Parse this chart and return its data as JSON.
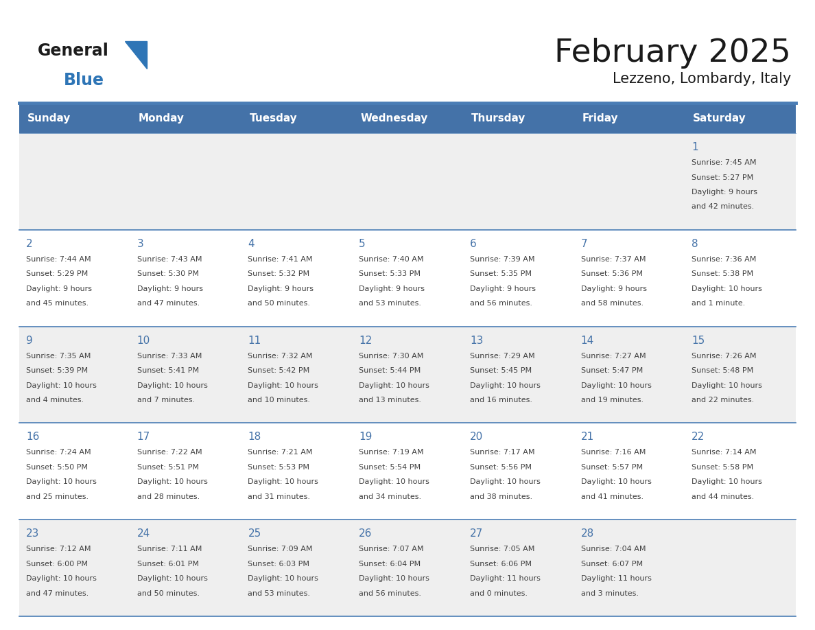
{
  "title": "February 2025",
  "subtitle": "Lezzeno, Lombardy, Italy",
  "days_of_week": [
    "Sunday",
    "Monday",
    "Tuesday",
    "Wednesday",
    "Thursday",
    "Friday",
    "Saturday"
  ],
  "header_bg_color": "#4472A8",
  "header_text_color": "#FFFFFF",
  "cell_bg_color_odd": "#EFEFEF",
  "cell_bg_color_even": "#FFFFFF",
  "separator_color": "#4A7DB5",
  "day_number_color": "#4472A8",
  "text_color": "#404040",
  "calendar_data": [
    [
      null,
      null,
      null,
      null,
      null,
      null,
      {
        "day": "1",
        "sunrise": "7:45 AM",
        "sunset": "5:27 PM",
        "daylight_line1": "Daylight: 9 hours",
        "daylight_line2": "and 42 minutes."
      }
    ],
    [
      {
        "day": "2",
        "sunrise": "7:44 AM",
        "sunset": "5:29 PM",
        "daylight_line1": "Daylight: 9 hours",
        "daylight_line2": "and 45 minutes."
      },
      {
        "day": "3",
        "sunrise": "7:43 AM",
        "sunset": "5:30 PM",
        "daylight_line1": "Daylight: 9 hours",
        "daylight_line2": "and 47 minutes."
      },
      {
        "day": "4",
        "sunrise": "7:41 AM",
        "sunset": "5:32 PM",
        "daylight_line1": "Daylight: 9 hours",
        "daylight_line2": "and 50 minutes."
      },
      {
        "day": "5",
        "sunrise": "7:40 AM",
        "sunset": "5:33 PM",
        "daylight_line1": "Daylight: 9 hours",
        "daylight_line2": "and 53 minutes."
      },
      {
        "day": "6",
        "sunrise": "7:39 AM",
        "sunset": "5:35 PM",
        "daylight_line1": "Daylight: 9 hours",
        "daylight_line2": "and 56 minutes."
      },
      {
        "day": "7",
        "sunrise": "7:37 AM",
        "sunset": "5:36 PM",
        "daylight_line1": "Daylight: 9 hours",
        "daylight_line2": "and 58 minutes."
      },
      {
        "day": "8",
        "sunrise": "7:36 AM",
        "sunset": "5:38 PM",
        "daylight_line1": "Daylight: 10 hours",
        "daylight_line2": "and 1 minute."
      }
    ],
    [
      {
        "day": "9",
        "sunrise": "7:35 AM",
        "sunset": "5:39 PM",
        "daylight_line1": "Daylight: 10 hours",
        "daylight_line2": "and 4 minutes."
      },
      {
        "day": "10",
        "sunrise": "7:33 AM",
        "sunset": "5:41 PM",
        "daylight_line1": "Daylight: 10 hours",
        "daylight_line2": "and 7 minutes."
      },
      {
        "day": "11",
        "sunrise": "7:32 AM",
        "sunset": "5:42 PM",
        "daylight_line1": "Daylight: 10 hours",
        "daylight_line2": "and 10 minutes."
      },
      {
        "day": "12",
        "sunrise": "7:30 AM",
        "sunset": "5:44 PM",
        "daylight_line1": "Daylight: 10 hours",
        "daylight_line2": "and 13 minutes."
      },
      {
        "day": "13",
        "sunrise": "7:29 AM",
        "sunset": "5:45 PM",
        "daylight_line1": "Daylight: 10 hours",
        "daylight_line2": "and 16 minutes."
      },
      {
        "day": "14",
        "sunrise": "7:27 AM",
        "sunset": "5:47 PM",
        "daylight_line1": "Daylight: 10 hours",
        "daylight_line2": "and 19 minutes."
      },
      {
        "day": "15",
        "sunrise": "7:26 AM",
        "sunset": "5:48 PM",
        "daylight_line1": "Daylight: 10 hours",
        "daylight_line2": "and 22 minutes."
      }
    ],
    [
      {
        "day": "16",
        "sunrise": "7:24 AM",
        "sunset": "5:50 PM",
        "daylight_line1": "Daylight: 10 hours",
        "daylight_line2": "and 25 minutes."
      },
      {
        "day": "17",
        "sunrise": "7:22 AM",
        "sunset": "5:51 PM",
        "daylight_line1": "Daylight: 10 hours",
        "daylight_line2": "and 28 minutes."
      },
      {
        "day": "18",
        "sunrise": "7:21 AM",
        "sunset": "5:53 PM",
        "daylight_line1": "Daylight: 10 hours",
        "daylight_line2": "and 31 minutes."
      },
      {
        "day": "19",
        "sunrise": "7:19 AM",
        "sunset": "5:54 PM",
        "daylight_line1": "Daylight: 10 hours",
        "daylight_line2": "and 34 minutes."
      },
      {
        "day": "20",
        "sunrise": "7:17 AM",
        "sunset": "5:56 PM",
        "daylight_line1": "Daylight: 10 hours",
        "daylight_line2": "and 38 minutes."
      },
      {
        "day": "21",
        "sunrise": "7:16 AM",
        "sunset": "5:57 PM",
        "daylight_line1": "Daylight: 10 hours",
        "daylight_line2": "and 41 minutes."
      },
      {
        "day": "22",
        "sunrise": "7:14 AM",
        "sunset": "5:58 PM",
        "daylight_line1": "Daylight: 10 hours",
        "daylight_line2": "and 44 minutes."
      }
    ],
    [
      {
        "day": "23",
        "sunrise": "7:12 AM",
        "sunset": "6:00 PM",
        "daylight_line1": "Daylight: 10 hours",
        "daylight_line2": "and 47 minutes."
      },
      {
        "day": "24",
        "sunrise": "7:11 AM",
        "sunset": "6:01 PM",
        "daylight_line1": "Daylight: 10 hours",
        "daylight_line2": "and 50 minutes."
      },
      {
        "day": "25",
        "sunrise": "7:09 AM",
        "sunset": "6:03 PM",
        "daylight_line1": "Daylight: 10 hours",
        "daylight_line2": "and 53 minutes."
      },
      {
        "day": "26",
        "sunrise": "7:07 AM",
        "sunset": "6:04 PM",
        "daylight_line1": "Daylight: 10 hours",
        "daylight_line2": "and 56 minutes."
      },
      {
        "day": "27",
        "sunrise": "7:05 AM",
        "sunset": "6:06 PM",
        "daylight_line1": "Daylight: 11 hours",
        "daylight_line2": "and 0 minutes."
      },
      {
        "day": "28",
        "sunrise": "7:04 AM",
        "sunset": "6:07 PM",
        "daylight_line1": "Daylight: 11 hours",
        "daylight_line2": "and 3 minutes."
      },
      null
    ]
  ]
}
